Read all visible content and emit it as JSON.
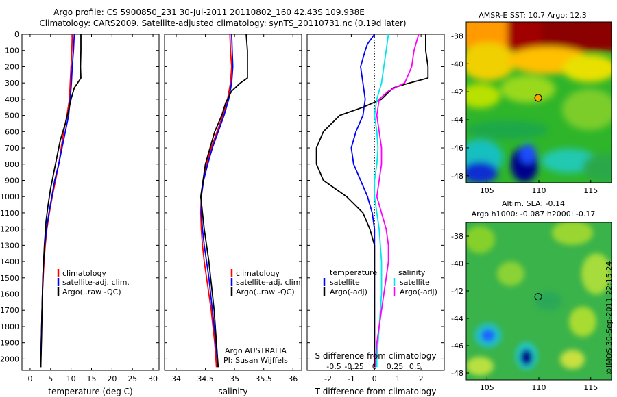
{
  "header": {
    "line1": "Argo profile: CS 5900850_231 30-Jul-2011 20110802_160 42.43S 109.938E",
    "line2": "Climatology: CARS2009. Satellite-adjusted climatology: synTS_20110731.nc (0.19d later)"
  },
  "credit": "©IMOS 30-Sep-2011 22:15:24",
  "colors": {
    "climatology": "#ff0000",
    "satellite": "#0000ff",
    "argo": "#000000",
    "sat_salinity": "#00e5ee",
    "argo_salinity": "#ff00ff"
  },
  "depth_axis": {
    "ticks": [
      0,
      100,
      200,
      300,
      400,
      500,
      600,
      700,
      800,
      900,
      1000,
      1100,
      1200,
      1300,
      1400,
      1500,
      1600,
      1700,
      1800,
      1900,
      2000
    ],
    "range": [
      0,
      2070
    ]
  },
  "chart_data": [
    {
      "type": "line",
      "id": "temperature",
      "xlabel": "temperature (deg C)",
      "xlim": [
        -2,
        31.5
      ],
      "xticks": [
        0,
        5,
        10,
        15,
        20,
        25,
        30
      ],
      "legend": [
        "climatology",
        "satellite-adj. clim.",
        "Argo(..raw -QC)"
      ],
      "legend_position": "lower-middle",
      "series": [
        {
          "name": "climatology",
          "color": "#ff0000",
          "points": [
            [
              10.3,
              0
            ],
            [
              10.2,
              100
            ],
            [
              10.0,
              200
            ],
            [
              9.8,
              300
            ],
            [
              9.6,
              400
            ],
            [
              9.0,
              500
            ],
            [
              8.2,
              600
            ],
            [
              7.6,
              700
            ],
            [
              7.0,
              800
            ],
            [
              6.2,
              900
            ],
            [
              5.4,
              1000
            ],
            [
              4.7,
              1100
            ],
            [
              4.1,
              1200
            ],
            [
              3.7,
              1300
            ],
            [
              3.4,
              1400
            ],
            [
              3.2,
              1500
            ],
            [
              3.0,
              1600
            ],
            [
              2.9,
              1700
            ],
            [
              2.8,
              1800
            ],
            [
              2.7,
              1900
            ],
            [
              2.6,
              2000
            ],
            [
              2.6,
              2050
            ]
          ]
        },
        {
          "name": "satellite-adj. clim.",
          "color": "#0000ff",
          "points": [
            [
              10.8,
              0
            ],
            [
              10.6,
              100
            ],
            [
              10.3,
              200
            ],
            [
              10.1,
              300
            ],
            [
              9.8,
              400
            ],
            [
              9.4,
              500
            ],
            [
              8.6,
              600
            ],
            [
              7.8,
              700
            ],
            [
              7.0,
              800
            ],
            [
              6.0,
              900
            ],
            [
              5.3,
              1000
            ],
            [
              4.6,
              1100
            ],
            [
              4.0,
              1200
            ],
            [
              3.6,
              1300
            ],
            [
              3.3,
              1400
            ],
            [
              3.1,
              1500
            ],
            [
              3.0,
              1600
            ],
            [
              2.9,
              1700
            ],
            [
              2.8,
              1800
            ],
            [
              2.7,
              1900
            ],
            [
              2.6,
              2000
            ],
            [
              2.6,
              2050
            ]
          ]
        },
        {
          "name": "Argo(..raw -QC)",
          "color": "#000000",
          "points": [
            [
              12.4,
              0
            ],
            [
              12.4,
              100
            ],
            [
              12.3,
              200
            ],
            [
              12.4,
              270
            ],
            [
              11.6,
              300
            ],
            [
              10.8,
              330
            ],
            [
              10.0,
              400
            ],
            [
              9.3,
              480
            ],
            [
              8.6,
              550
            ],
            [
              7.4,
              650
            ],
            [
              6.6,
              750
            ],
            [
              5.8,
              850
            ],
            [
              5.0,
              950
            ],
            [
              4.4,
              1050
            ],
            [
              3.9,
              1150
            ],
            [
              3.5,
              1300
            ],
            [
              3.2,
              1450
            ],
            [
              3.0,
              1600
            ],
            [
              2.9,
              1700
            ],
            [
              2.8,
              1850
            ],
            [
              2.7,
              1950
            ],
            [
              2.6,
              2050
            ]
          ]
        }
      ]
    },
    {
      "type": "line",
      "id": "salinity",
      "xlabel": "salinity",
      "xlim": [
        33.8,
        36.15
      ],
      "xticks": [
        34,
        34.5,
        35,
        35.5,
        36
      ],
      "legend": [
        "climatology",
        "satellite-adj. clim.",
        "Argo(..raw -QC)"
      ],
      "legend_position": "lower-right",
      "annotation": [
        "Argo AUSTRALIA",
        "PI: Susan Wijffels"
      ],
      "series": [
        {
          "name": "climatology",
          "color": "#ff0000",
          "points": [
            [
              34.92,
              0
            ],
            [
              34.93,
              100
            ],
            [
              34.95,
              200
            ],
            [
              34.93,
              300
            ],
            [
              34.88,
              400
            ],
            [
              34.8,
              500
            ],
            [
              34.7,
              600
            ],
            [
              34.6,
              700
            ],
            [
              34.52,
              800
            ],
            [
              34.46,
              900
            ],
            [
              34.43,
              1000
            ],
            [
              34.42,
              1100
            ],
            [
              34.43,
              1200
            ],
            [
              34.45,
              1300
            ],
            [
              34.48,
              1400
            ],
            [
              34.52,
              1500
            ],
            [
              34.56,
              1600
            ],
            [
              34.6,
              1700
            ],
            [
              34.63,
              1800
            ],
            [
              34.66,
              1900
            ],
            [
              34.68,
              2000
            ],
            [
              34.69,
              2050
            ]
          ]
        },
        {
          "name": "satellite-adj. clim.",
          "color": "#0000ff",
          "points": [
            [
              34.95,
              0
            ],
            [
              34.96,
              100
            ],
            [
              34.97,
              200
            ],
            [
              34.95,
              300
            ],
            [
              34.9,
              400
            ],
            [
              34.82,
              500
            ],
            [
              34.72,
              600
            ],
            [
              34.62,
              700
            ],
            [
              34.54,
              800
            ],
            [
              34.47,
              900
            ],
            [
              34.43,
              1000
            ],
            [
              34.43,
              1100
            ],
            [
              34.45,
              1200
            ],
            [
              34.48,
              1300
            ],
            [
              34.52,
              1400
            ],
            [
              34.56,
              1500
            ],
            [
              34.59,
              1600
            ],
            [
              34.62,
              1700
            ],
            [
              34.65,
              1800
            ],
            [
              34.68,
              1900
            ],
            [
              34.7,
              2000
            ],
            [
              34.71,
              2050
            ]
          ]
        },
        {
          "name": "Argo(..raw -QC)",
          "color": "#000000",
          "points": [
            [
              35.2,
              0
            ],
            [
              35.22,
              100
            ],
            [
              35.22,
              200
            ],
            [
              35.22,
              270
            ],
            [
              35.1,
              300
            ],
            [
              34.95,
              350
            ],
            [
              34.85,
              420
            ],
            [
              34.78,
              500
            ],
            [
              34.66,
              600
            ],
            [
              34.58,
              700
            ],
            [
              34.5,
              800
            ],
            [
              34.46,
              900
            ],
            [
              34.42,
              1000
            ],
            [
              34.45,
              1100
            ],
            [
              34.48,
              1200
            ],
            [
              34.52,
              1300
            ],
            [
              34.56,
              1400
            ],
            [
              34.59,
              1500
            ],
            [
              34.62,
              1600
            ],
            [
              34.65,
              1700
            ],
            [
              34.67,
              1800
            ],
            [
              34.69,
              1900
            ],
            [
              34.71,
              2000
            ],
            [
              34.72,
              2050
            ]
          ]
        }
      ]
    },
    {
      "type": "line",
      "id": "differences",
      "xlabel": "T difference from climatology",
      "xlim": [
        -2.9,
        3.0
      ],
      "xticks": [
        -2,
        -1,
        0,
        1,
        2
      ],
      "top_scale_label": "S difference from climatology",
      "top_scale_ticks": [
        "-0.5",
        "-0.25",
        "0",
        "0.25",
        "0.5"
      ],
      "top_scale_positions_T": [
        -1.75,
        -0.875,
        0,
        0.875,
        1.75
      ],
      "legend_left_title": "temperature",
      "legend_right_title": "salinity",
      "legend": [
        "satellite",
        "Argo(-adj)",
        "satellite",
        "Argo(-adj)"
      ],
      "zero_line": true,
      "series": [
        {
          "name": "satellite",
          "group": "temperature",
          "color": "#0000ff",
          "points": [
            [
              0.0,
              0
            ],
            [
              -0.3,
              60
            ],
            [
              -0.4,
              100
            ],
            [
              -0.6,
              200
            ],
            [
              -0.5,
              300
            ],
            [
              -0.4,
              400
            ],
            [
              -0.5,
              500
            ],
            [
              -0.8,
              600
            ],
            [
              -1.0,
              700
            ],
            [
              -0.9,
              800
            ],
            [
              -0.6,
              900
            ],
            [
              -0.3,
              1000
            ],
            [
              -0.1,
              1100
            ],
            [
              0.0,
              1200
            ],
            [
              0.0,
              1300
            ],
            [
              0.0,
              1500
            ],
            [
              0.0,
              1700
            ],
            [
              0.0,
              1900
            ],
            [
              0.0,
              2050
            ]
          ]
        },
        {
          "name": "Argo(-adj)",
          "group": "temperature",
          "color": "#000000",
          "points": [
            [
              2.2,
              0
            ],
            [
              2.2,
              100
            ],
            [
              2.3,
              200
            ],
            [
              2.3,
              270
            ],
            [
              1.5,
              300
            ],
            [
              0.8,
              330
            ],
            [
              0.3,
              400
            ],
            [
              -0.5,
              450
            ],
            [
              -1.5,
              500
            ],
            [
              -2.2,
              600
            ],
            [
              -2.5,
              700
            ],
            [
              -2.5,
              800
            ],
            [
              -2.2,
              900
            ],
            [
              -1.2,
              1000
            ],
            [
              -0.5,
              1100
            ],
            [
              -0.2,
              1200
            ],
            [
              0.0,
              1300
            ],
            [
              0.0,
              1500
            ],
            [
              0.0,
              1700
            ],
            [
              0.0,
              1900
            ],
            [
              0.0,
              2050
            ]
          ]
        },
        {
          "name": "satellite",
          "group": "salinity",
          "color": "#00e5ee",
          "points": [
            [
              0.6,
              0
            ],
            [
              0.5,
              100
            ],
            [
              0.4,
              200
            ],
            [
              0.3,
              300
            ],
            [
              0.1,
              400
            ],
            [
              0.0,
              500
            ],
            [
              0.1,
              600
            ],
            [
              0.15,
              700
            ],
            [
              0.1,
              800
            ],
            [
              0.0,
              900
            ],
            [
              0.0,
              1000
            ],
            [
              0.1,
              1100
            ],
            [
              0.2,
              1200
            ],
            [
              0.25,
              1300
            ],
            [
              0.3,
              1400
            ],
            [
              0.3,
              1500
            ],
            [
              0.3,
              1600
            ],
            [
              0.25,
              1700
            ],
            [
              0.2,
              1800
            ],
            [
              0.15,
              1900
            ],
            [
              0.1,
              2000
            ],
            [
              0.1,
              2050
            ]
          ]
        },
        {
          "name": "Argo(-adj)",
          "group": "salinity",
          "color": "#ff00ff",
          "points": [
            [
              1.9,
              0
            ],
            [
              1.7,
              100
            ],
            [
              1.6,
              200
            ],
            [
              1.3,
              300
            ],
            [
              0.6,
              350
            ],
            [
              0.2,
              400
            ],
            [
              0.1,
              500
            ],
            [
              0.2,
              600
            ],
            [
              0.3,
              700
            ],
            [
              0.3,
              800
            ],
            [
              0.2,
              900
            ],
            [
              0.1,
              1000
            ],
            [
              0.3,
              1100
            ],
            [
              0.5,
              1200
            ],
            [
              0.6,
              1300
            ],
            [
              0.6,
              1400
            ],
            [
              0.5,
              1500
            ],
            [
              0.4,
              1600
            ],
            [
              0.3,
              1700
            ],
            [
              0.2,
              1800
            ],
            [
              0.1,
              1900
            ],
            [
              0.05,
              2000
            ],
            [
              0.05,
              2050
            ]
          ]
        }
      ]
    },
    {
      "type": "heatmap",
      "id": "sst_map",
      "title": "AMSR-E SST: 10.7  Argo: 12.3",
      "xlim": [
        103,
        117
      ],
      "ylim": [
        -48.5,
        -37
      ],
      "xticks": [
        105,
        110,
        115
      ],
      "yticks": [
        -38,
        -40,
        -42,
        -44,
        -46,
        -48
      ],
      "marker": {
        "lon": 109.938,
        "lat": -42.43,
        "fill": "#ffa500"
      }
    },
    {
      "type": "heatmap",
      "id": "sla_map",
      "title_line1": "Altim. SLA: -0.14",
      "title_line2": "Argo h1000: -0.087 h2000: -0.17",
      "xlim": [
        103,
        117
      ],
      "ylim": [
        -48.5,
        -37
      ],
      "xticks": [
        105,
        110,
        115
      ],
      "yticks": [
        -38,
        -40,
        -42,
        -44,
        -46,
        -48
      ],
      "marker": {
        "lon": 109.938,
        "lat": -42.43,
        "fill": "none"
      }
    }
  ]
}
